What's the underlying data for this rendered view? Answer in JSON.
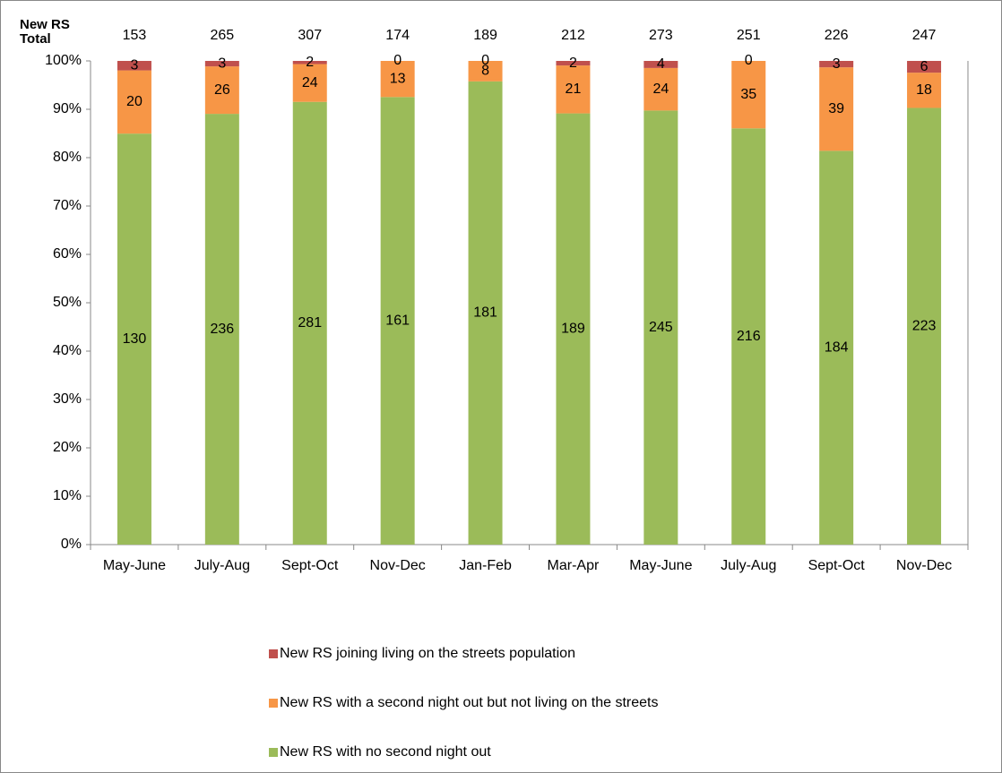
{
  "chart_data": {
    "type": "bar",
    "stacked": "percent",
    "totals_label": "New RS Total",
    "totals": [
      153,
      265,
      307,
      174,
      189,
      212,
      273,
      251,
      226,
      247
    ],
    "categories": [
      "May-June",
      "July-Aug",
      "Sept-Oct",
      "Nov-Dec",
      "Jan-Feb",
      "Mar-Apr",
      "May-June",
      "July-Aug",
      "Sept-Oct",
      "Nov-Dec"
    ],
    "series": [
      {
        "name": "New RS with no second night out",
        "color": "#9bbb59",
        "values": [
          130,
          236,
          281,
          161,
          181,
          189,
          245,
          216,
          184,
          223
        ]
      },
      {
        "name": "New RS with a second night out but not living on the streets",
        "color": "#f79646",
        "values": [
          20,
          26,
          24,
          13,
          8,
          21,
          24,
          35,
          39,
          18
        ]
      },
      {
        "name": "New RS joining living on the streets population",
        "color": "#c0504d",
        "values": [
          3,
          3,
          2,
          0,
          0,
          2,
          4,
          0,
          3,
          6
        ]
      }
    ],
    "ylim": [
      0,
      100
    ],
    "yticks": [
      {
        "value": 0,
        "label": "0%"
      },
      {
        "value": 10,
        "label": "10%"
      },
      {
        "value": 20,
        "label": "20%"
      },
      {
        "value": 30,
        "label": "30%"
      },
      {
        "value": 40,
        "label": "40%"
      },
      {
        "value": 50,
        "label": "50%"
      },
      {
        "value": 60,
        "label": "60%"
      },
      {
        "value": 70,
        "label": "70%"
      },
      {
        "value": 80,
        "label": "80%"
      },
      {
        "value": 90,
        "label": "90%"
      },
      {
        "value": 100,
        "label": "100%"
      }
    ],
    "grid": false
  }
}
